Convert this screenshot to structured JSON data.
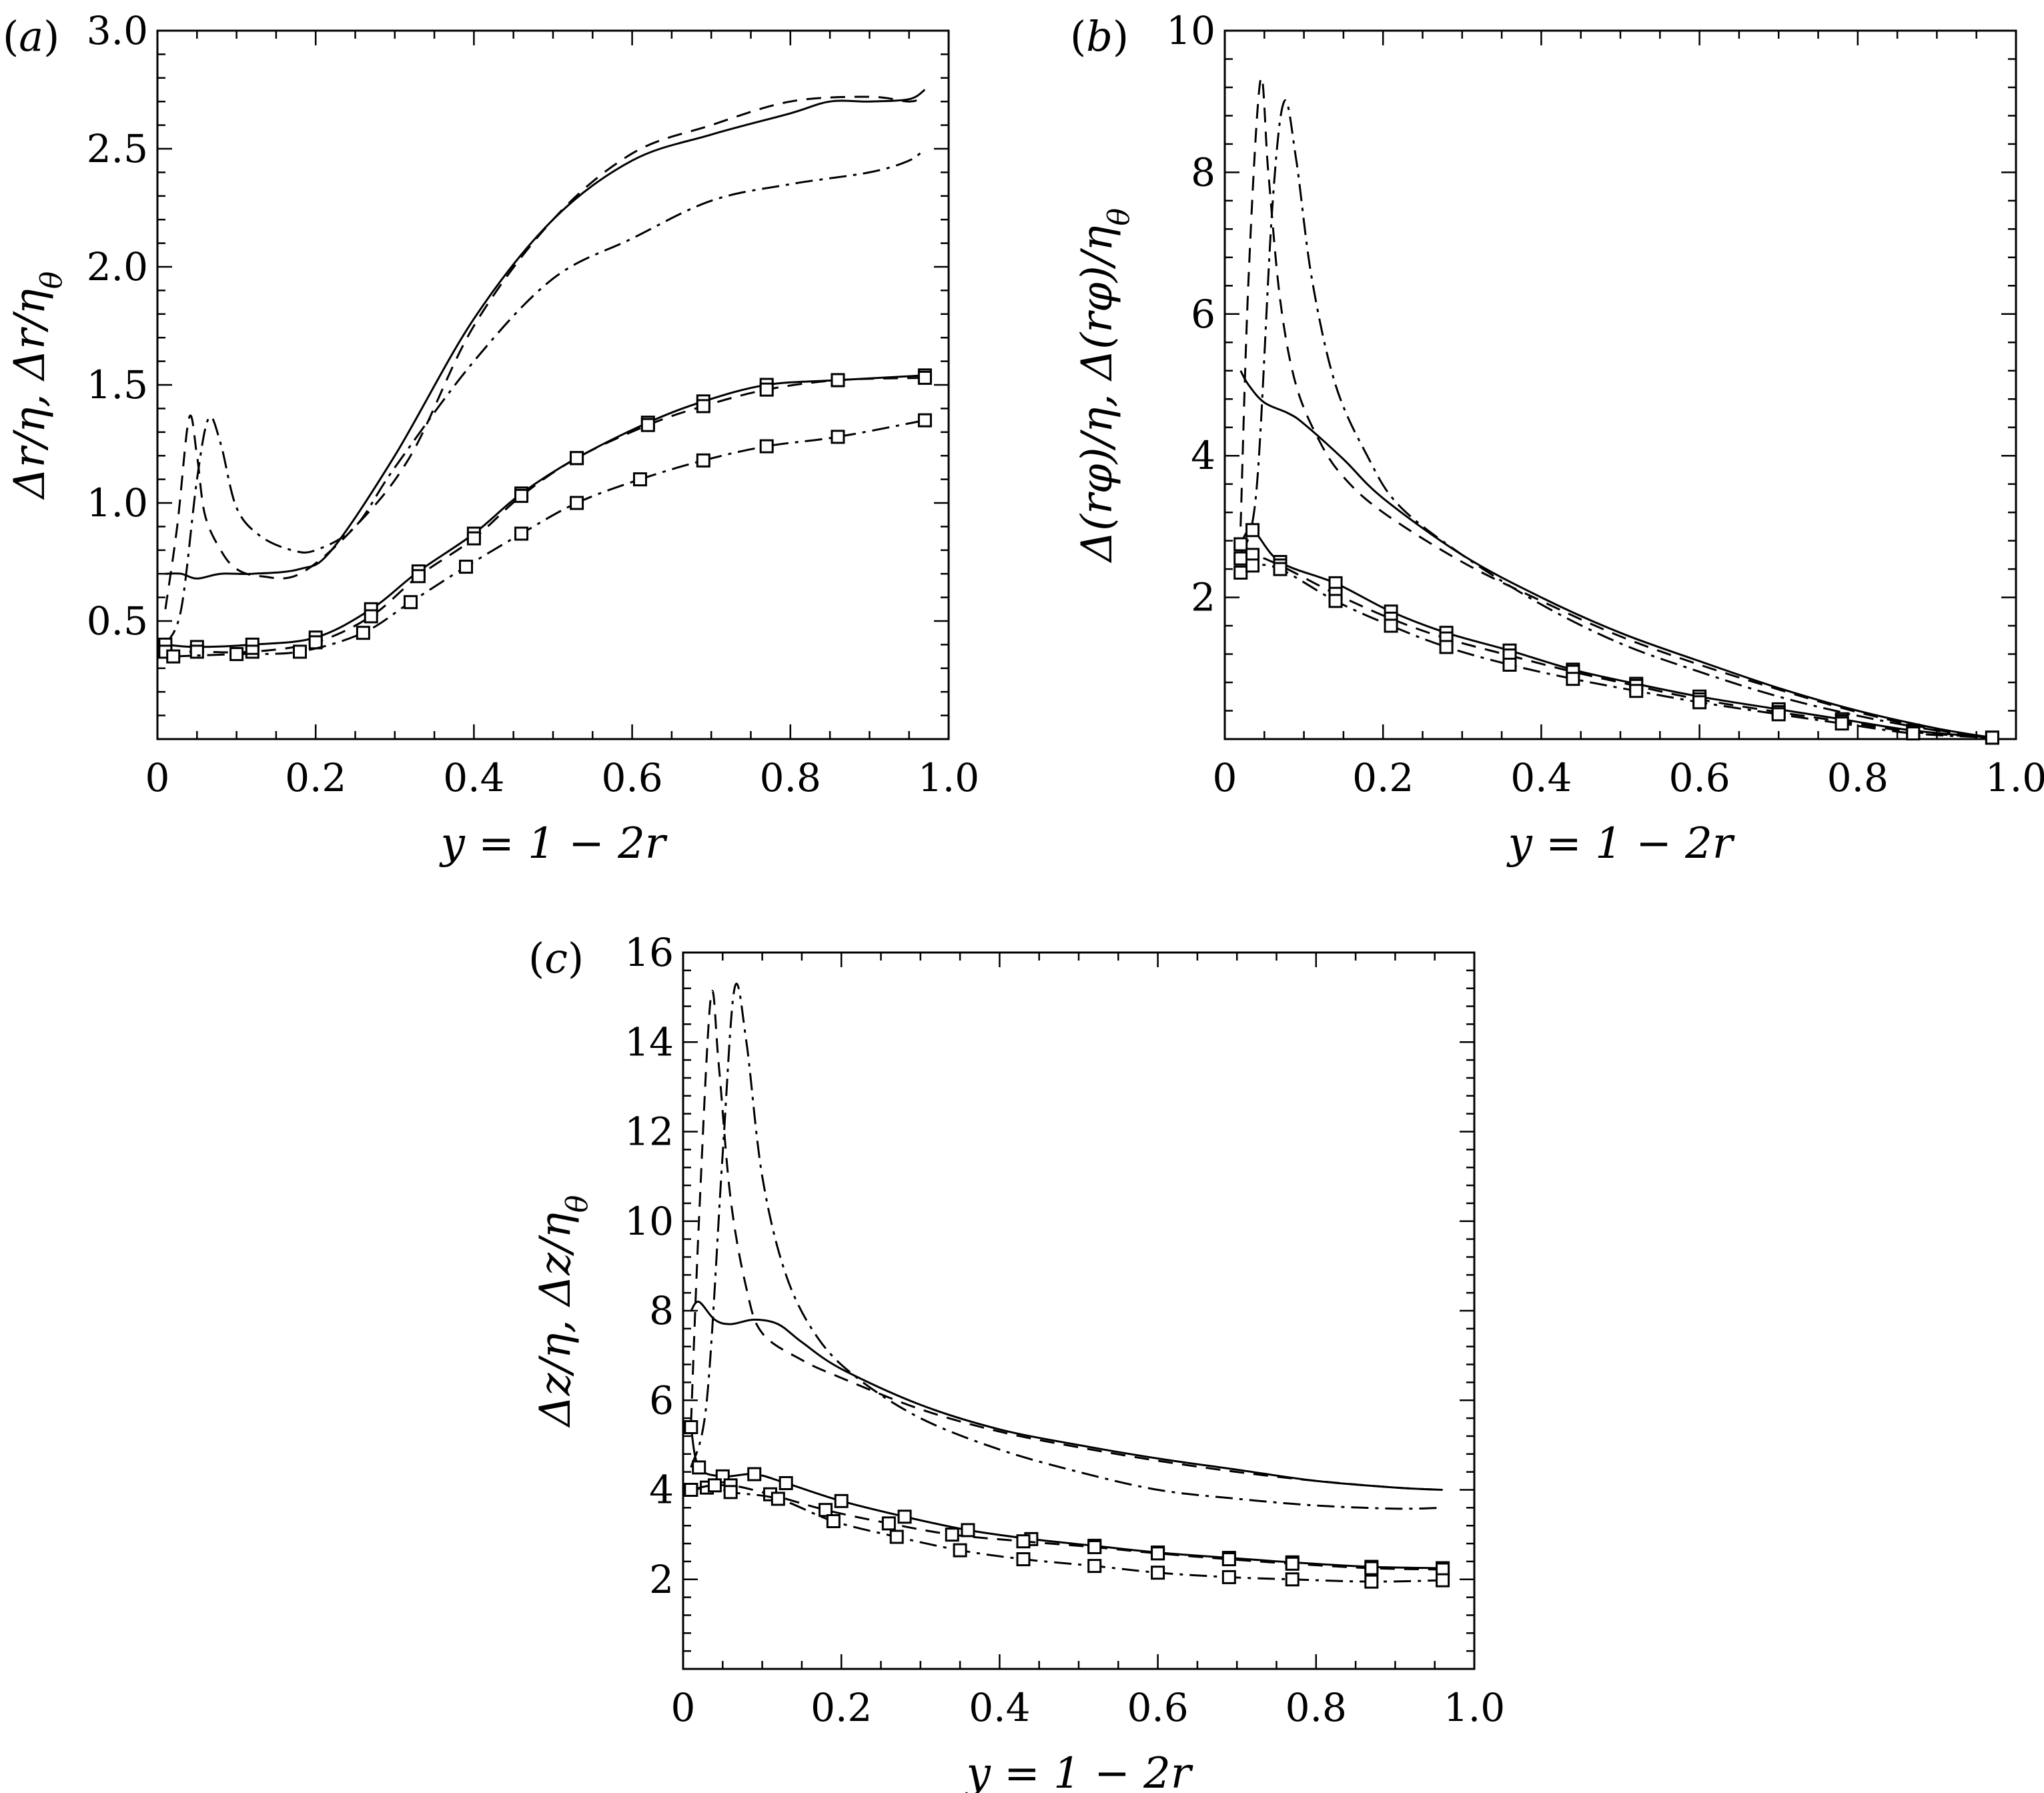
{
  "chart_data": [
    {
      "panel": "(a)",
      "type": "line",
      "panel_label_prefix": "(",
      "panel_label_letter": "a",
      "panel_label_suffix": ")",
      "xlabel": "y = 1 − 2r",
      "ylabel": "Δr/η, Δr/η_θ",
      "xlim": [
        0,
        1
      ],
      "ylim": [
        0,
        3
      ],
      "xticks": [
        0,
        0.2,
        0.4,
        0.6,
        0.8,
        1.0
      ],
      "xtick_labels": [
        "0",
        "0.2",
        "0.4",
        "0.6",
        "0.8",
        "1.0"
      ],
      "yticks": [
        0.5,
        1.0,
        1.5,
        2.0,
        2.5,
        3.0
      ],
      "ytick_labels": [
        "0.5",
        "1.0",
        "1.5",
        "2.0",
        "2.5",
        "3.0"
      ],
      "series": [
        {
          "name": "solid",
          "dash": "solid",
          "marker": false,
          "x": [
            0.01,
            0.03,
            0.05,
            0.08,
            0.12,
            0.18,
            0.22,
            0.3,
            0.4,
            0.5,
            0.6,
            0.7,
            0.8,
            0.85,
            0.9,
            0.95,
            0.97
          ],
          "y": [
            0.7,
            0.7,
            0.68,
            0.7,
            0.7,
            0.72,
            0.8,
            1.2,
            1.78,
            2.2,
            2.45,
            2.56,
            2.65,
            2.7,
            2.7,
            2.71,
            2.75
          ]
        },
        {
          "name": "dashed",
          "dash": "dashed",
          "marker": false,
          "x": [
            0.01,
            0.025,
            0.04,
            0.05,
            0.06,
            0.08,
            0.1,
            0.13,
            0.18,
            0.25,
            0.32,
            0.4,
            0.5,
            0.6,
            0.7,
            0.8,
            0.9,
            0.95,
            0.97
          ],
          "y": [
            0.55,
            0.9,
            1.36,
            1.2,
            0.95,
            0.8,
            0.72,
            0.69,
            0.7,
            0.9,
            1.2,
            1.75,
            2.2,
            2.48,
            2.6,
            2.7,
            2.72,
            2.7,
            2.72
          ]
        },
        {
          "name": "dash-dot",
          "dash": "dashdot",
          "marker": false,
          "x": [
            0.01,
            0.03,
            0.05,
            0.065,
            0.08,
            0.1,
            0.13,
            0.17,
            0.2,
            0.25,
            0.3,
            0.4,
            0.5,
            0.6,
            0.7,
            0.8,
            0.9,
            0.95,
            0.97
          ],
          "y": [
            0.4,
            0.55,
            1.1,
            1.36,
            1.25,
            0.98,
            0.86,
            0.8,
            0.8,
            0.9,
            1.15,
            1.6,
            1.95,
            2.12,
            2.28,
            2.35,
            2.4,
            2.45,
            2.5
          ]
        },
        {
          "name": "solid-squares",
          "dash": "solid",
          "marker": true,
          "x": [
            0.01,
            0.05,
            0.12,
            0.2,
            0.27,
            0.33,
            0.4,
            0.46,
            0.53,
            0.62,
            0.69,
            0.77,
            0.86,
            0.97
          ],
          "y": [
            0.4,
            0.39,
            0.4,
            0.43,
            0.55,
            0.71,
            0.87,
            1.04,
            1.19,
            1.34,
            1.43,
            1.5,
            1.52,
            1.54
          ]
        },
        {
          "name": "dashed-squares",
          "dash": "dashed",
          "marker": true,
          "x": [
            0.01,
            0.05,
            0.12,
            0.2,
            0.27,
            0.33,
            0.4,
            0.46,
            0.53,
            0.62,
            0.69,
            0.77,
            0.86,
            0.97
          ],
          "y": [
            0.37,
            0.37,
            0.37,
            0.41,
            0.52,
            0.69,
            0.85,
            1.03,
            1.19,
            1.33,
            1.41,
            1.48,
            1.52,
            1.53
          ]
        },
        {
          "name": "dashdot-squares",
          "dash": "dashdot",
          "marker": true,
          "x": [
            0.02,
            0.1,
            0.18,
            0.26,
            0.32,
            0.39,
            0.46,
            0.53,
            0.61,
            0.69,
            0.77,
            0.86,
            0.97
          ],
          "y": [
            0.35,
            0.36,
            0.37,
            0.45,
            0.58,
            0.73,
            0.87,
            1.0,
            1.1,
            1.18,
            1.24,
            1.28,
            1.35
          ]
        }
      ]
    },
    {
      "panel": "(b)",
      "type": "line",
      "panel_label_prefix": "(",
      "panel_label_letter": "b",
      "panel_label_suffix": ")",
      "xlabel": "y = 1 − 2r",
      "ylabel": "Δ(rφ)/η, Δ(rφ)/η_θ",
      "xlim": [
        0,
        1
      ],
      "ylim": [
        0,
        10
      ],
      "xticks": [
        0,
        0.2,
        0.4,
        0.6,
        0.8,
        1.0
      ],
      "xtick_labels": [
        "0",
        "0.2",
        "0.4",
        "0.6",
        "0.8",
        "1.0"
      ],
      "yticks": [
        2,
        4,
        6,
        8,
        10
      ],
      "ytick_labels": [
        "2",
        "4",
        "6",
        "8",
        "10"
      ],
      "series": [
        {
          "name": "solid",
          "dash": "solid",
          "marker": false,
          "x": [
            0.02,
            0.03,
            0.05,
            0.08,
            0.1,
            0.15,
            0.2,
            0.3,
            0.4,
            0.5,
            0.6,
            0.7,
            0.8,
            0.9,
            0.97
          ],
          "y": [
            5.2,
            5.0,
            4.75,
            4.6,
            4.45,
            3.95,
            3.4,
            2.6,
            2.0,
            1.5,
            1.1,
            0.72,
            0.4,
            0.15,
            0.02
          ]
        },
        {
          "name": "dashed",
          "dash": "dashed",
          "marker": false,
          "x": [
            0.02,
            0.03,
            0.045,
            0.055,
            0.07,
            0.09,
            0.12,
            0.15,
            0.2,
            0.3,
            0.4,
            0.5,
            0.6,
            0.7,
            0.8,
            0.9,
            0.97
          ],
          "y": [
            3.0,
            6.5,
            9.3,
            8.0,
            6.2,
            5.0,
            4.2,
            3.7,
            3.2,
            2.5,
            1.95,
            1.45,
            1.05,
            0.7,
            0.38,
            0.13,
            0.02
          ]
        },
        {
          "name": "dash-dot",
          "dash": "dashdot",
          "marker": false,
          "x": [
            0.02,
            0.04,
            0.06,
            0.075,
            0.09,
            0.11,
            0.14,
            0.18,
            0.22,
            0.3,
            0.4,
            0.5,
            0.6,
            0.7,
            0.8,
            0.9,
            0.97
          ],
          "y": [
            2.6,
            3.5,
            7.5,
            9.0,
            8.2,
            6.5,
            5.0,
            4.0,
            3.3,
            2.6,
            1.9,
            1.35,
            0.95,
            0.6,
            0.33,
            0.12,
            0.02
          ]
        },
        {
          "name": "solid-squares",
          "dash": "solid",
          "marker": true,
          "x": [
            0.02,
            0.035,
            0.07,
            0.14,
            0.21,
            0.28,
            0.36,
            0.44,
            0.52,
            0.6,
            0.7,
            0.78,
            0.87,
            0.97
          ],
          "y": [
            2.75,
            2.95,
            2.5,
            2.2,
            1.8,
            1.5,
            1.25,
            0.98,
            0.78,
            0.6,
            0.42,
            0.28,
            0.12,
            0.02
          ]
        },
        {
          "name": "dashed-squares",
          "dash": "dashed",
          "marker": true,
          "x": [
            0.02,
            0.035,
            0.07,
            0.14,
            0.21,
            0.28,
            0.36,
            0.44,
            0.52,
            0.6,
            0.7,
            0.78,
            0.87,
            0.97
          ],
          "y": [
            2.55,
            2.6,
            2.45,
            2.05,
            1.7,
            1.42,
            1.18,
            0.95,
            0.75,
            0.56,
            0.38,
            0.25,
            0.1,
            0.02
          ]
        },
        {
          "name": "dashdot-squares",
          "dash": "dashdot",
          "marker": true,
          "x": [
            0.02,
            0.035,
            0.07,
            0.14,
            0.21,
            0.28,
            0.36,
            0.44,
            0.52,
            0.6,
            0.7,
            0.78,
            0.87,
            0.97
          ],
          "y": [
            2.35,
            2.45,
            2.4,
            1.95,
            1.6,
            1.3,
            1.05,
            0.85,
            0.68,
            0.52,
            0.35,
            0.22,
            0.08,
            0.02
          ]
        }
      ]
    },
    {
      "panel": "(c)",
      "type": "line",
      "panel_label_prefix": "(",
      "panel_label_letter": "c",
      "panel_label_suffix": ")",
      "xlabel": "y = 1 − 2r",
      "ylabel": "Δz/η, Δz/η_θ",
      "xlim": [
        0,
        1
      ],
      "ylim": [
        0,
        16
      ],
      "xticks": [
        0,
        0.2,
        0.4,
        0.6,
        0.8,
        1.0
      ],
      "xtick_labels": [
        "0",
        "0.2",
        "0.4",
        "0.6",
        "0.8",
        "1.0"
      ],
      "yticks": [
        2,
        4,
        6,
        8,
        10,
        12,
        14,
        16
      ],
      "ytick_labels": [
        "2",
        "4",
        "6",
        "8",
        "10",
        "12",
        "14",
        "16"
      ],
      "series": [
        {
          "name": "solid",
          "dash": "solid",
          "marker": false,
          "x": [
            0.01,
            0.02,
            0.04,
            0.06,
            0.09,
            0.12,
            0.15,
            0.2,
            0.3,
            0.4,
            0.5,
            0.6,
            0.7,
            0.8,
            0.9,
            0.96
          ],
          "y": [
            8.0,
            8.2,
            7.8,
            7.7,
            7.8,
            7.7,
            7.3,
            6.7,
            5.9,
            5.35,
            5.0,
            4.7,
            4.45,
            4.2,
            4.05,
            4.0
          ]
        },
        {
          "name": "dashed",
          "dash": "dashed",
          "marker": false,
          "x": [
            0.01,
            0.02,
            0.035,
            0.045,
            0.06,
            0.08,
            0.1,
            0.15,
            0.2,
            0.3,
            0.4,
            0.5,
            0.6,
            0.7,
            0.8,
            0.9,
            0.96
          ],
          "y": [
            5.5,
            10.0,
            15.0,
            13.5,
            10.5,
            8.5,
            7.5,
            6.9,
            6.5,
            5.8,
            5.3,
            4.95,
            4.65,
            4.4,
            4.2,
            4.05,
            4.0
          ]
        },
        {
          "name": "dash-dot",
          "dash": "dashdot",
          "marker": false,
          "x": [
            0.01,
            0.03,
            0.05,
            0.065,
            0.08,
            0.1,
            0.13,
            0.17,
            0.22,
            0.3,
            0.4,
            0.5,
            0.6,
            0.7,
            0.8,
            0.9,
            0.96
          ],
          "y": [
            4.5,
            6.0,
            11.5,
            15.2,
            14.0,
            11.0,
            8.8,
            7.4,
            6.5,
            5.6,
            4.9,
            4.4,
            4.0,
            3.8,
            3.65,
            3.58,
            3.6
          ]
        },
        {
          "name": "solid-squares",
          "dash": "solid",
          "marker": true,
          "x": [
            0.01,
            0.02,
            0.05,
            0.09,
            0.13,
            0.2,
            0.28,
            0.36,
            0.44,
            0.52,
            0.6,
            0.69,
            0.77,
            0.87,
            0.96
          ],
          "y": [
            5.4,
            4.5,
            4.3,
            4.35,
            4.15,
            3.75,
            3.4,
            3.1,
            2.9,
            2.75,
            2.6,
            2.48,
            2.38,
            2.28,
            2.25
          ]
        },
        {
          "name": "dashed-squares",
          "dash": "dashed",
          "marker": true,
          "x": [
            0.01,
            0.03,
            0.06,
            0.11,
            0.18,
            0.26,
            0.34,
            0.43,
            0.52,
            0.6,
            0.69,
            0.77,
            0.87,
            0.96
          ],
          "y": [
            4.0,
            4.05,
            4.1,
            3.9,
            3.55,
            3.25,
            3.0,
            2.85,
            2.72,
            2.58,
            2.45,
            2.35,
            2.25,
            2.22
          ]
        },
        {
          "name": "dashdot-squares",
          "dash": "dashdot",
          "marker": true,
          "x": [
            0.01,
            0.04,
            0.06,
            0.12,
            0.19,
            0.27,
            0.35,
            0.43,
            0.52,
            0.6,
            0.69,
            0.77,
            0.87,
            0.96
          ],
          "y": [
            4.0,
            4.1,
            3.95,
            3.8,
            3.3,
            2.95,
            2.65,
            2.45,
            2.3,
            2.15,
            2.05,
            2.0,
            1.95,
            1.98
          ]
        }
      ]
    }
  ]
}
